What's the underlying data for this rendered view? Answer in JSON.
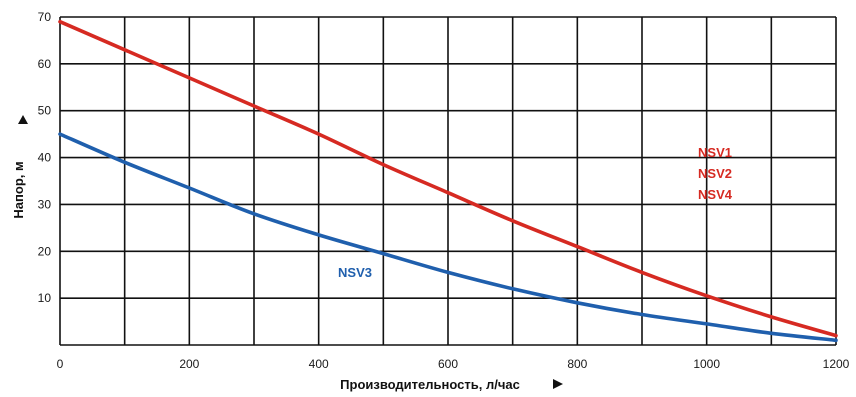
{
  "chart_data": {
    "type": "line",
    "xlabel": "Производительность, л/час",
    "ylabel": "Напор, м",
    "xlim": [
      0,
      1200
    ],
    "ylim": [
      0,
      70
    ],
    "x_ticks": [
      "0",
      "200",
      "400",
      "600",
      "800",
      "1000",
      "1200"
    ],
    "y_ticks": [
      "10",
      "20",
      "30",
      "40",
      "50",
      "60",
      "70"
    ],
    "grid": true,
    "series": [
      {
        "labels": [
          "NSV1",
          "NSV2",
          "NSV4"
        ],
        "color": "#d62a22",
        "x": [
          0,
          100,
          200,
          300,
          400,
          500,
          600,
          700,
          800,
          900,
          1000,
          1100,
          1200
        ],
        "y": [
          69,
          63,
          57,
          51,
          45,
          38.5,
          32.5,
          26.5,
          21,
          15.5,
          10.5,
          6,
          2
        ]
      },
      {
        "labels": [
          "NSV3"
        ],
        "color": "#1f5fad",
        "x": [
          0,
          100,
          200,
          300,
          400,
          500,
          600,
          700,
          800,
          900,
          1000,
          1100,
          1200
        ],
        "y": [
          45,
          39,
          33.5,
          28,
          23.5,
          19.5,
          15.5,
          12,
          9,
          6.5,
          4.5,
          2.5,
          1
        ]
      }
    ]
  }
}
